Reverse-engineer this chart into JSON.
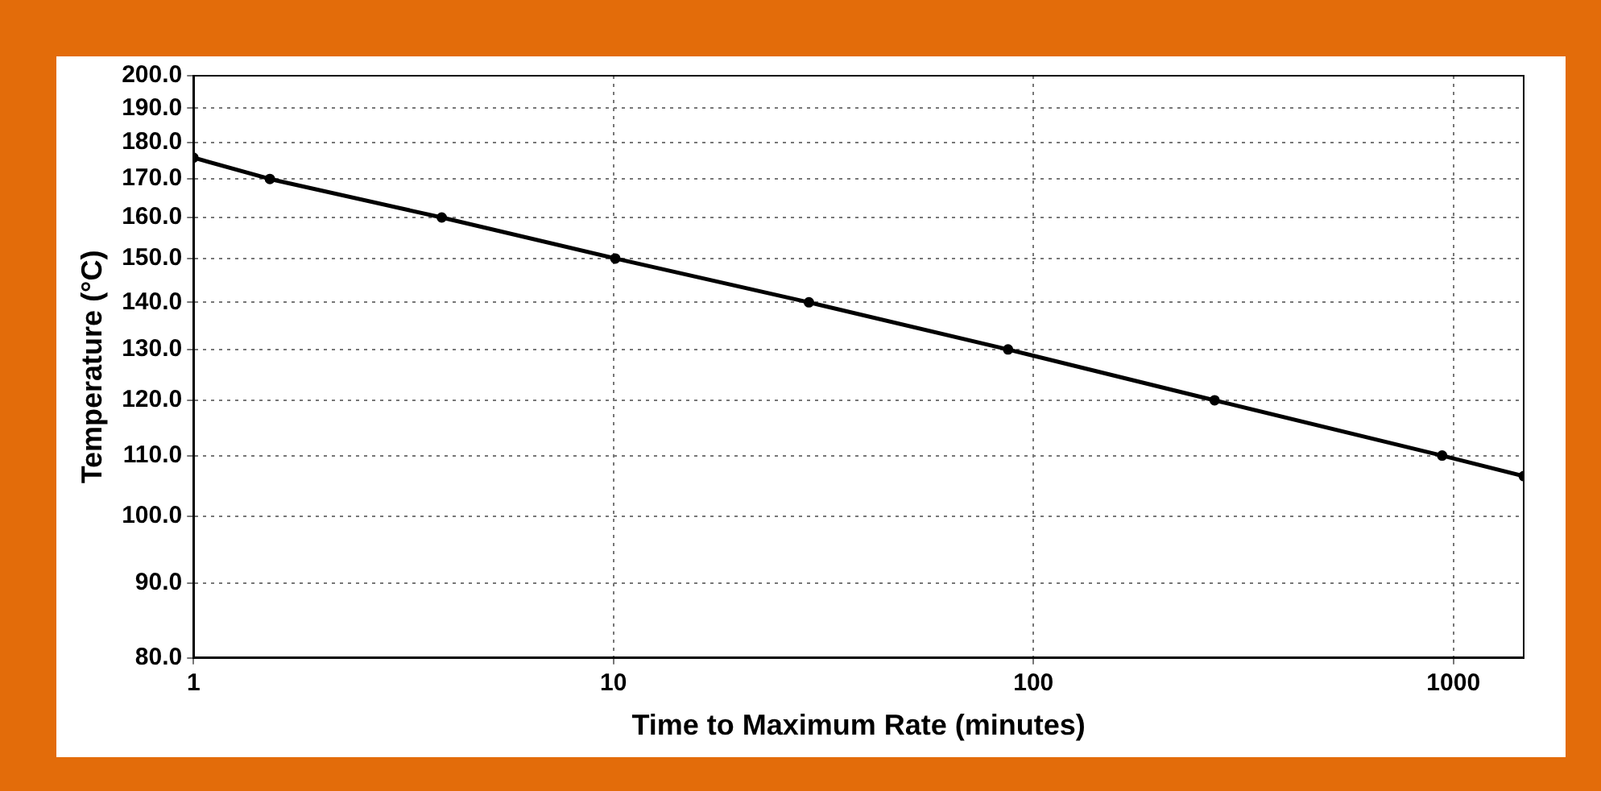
{
  "chart_data": {
    "type": "line",
    "xlabel": "Time to Maximum Rate (minutes)",
    "ylabel": "Temperature (°C)",
    "x": [
      1,
      1.52,
      3.9,
      10.1,
      29.2,
      87,
      270,
      940,
      1470
    ],
    "series": [
      {
        "color": "#000000",
        "values": [
          175.8,
          170,
          160,
          150,
          140,
          130,
          120,
          110,
          106.5
        ]
      }
    ],
    "log": "xy",
    "xlim": [
      1,
      1470
    ],
    "ylim": [
      80,
      200
    ],
    "xticks": [
      1,
      10,
      100,
      1000
    ],
    "yticks": [
      {
        "value": 80,
        "label": "80.0"
      },
      {
        "value": 90,
        "label": "90.0"
      },
      {
        "value": 100,
        "label": "100.0"
      },
      {
        "value": 110,
        "label": "110.0"
      },
      {
        "value": 120,
        "label": "120.0"
      },
      {
        "value": 130,
        "label": "130.0"
      },
      {
        "value": 140,
        "label": "140.0"
      },
      {
        "value": 150,
        "label": "150.0"
      },
      {
        "value": 160,
        "label": "160.0"
      },
      {
        "value": 170,
        "label": "170.0"
      },
      {
        "value": 180,
        "label": "180.0"
      },
      {
        "value": 190,
        "label": "190.0"
      },
      {
        "value": 200,
        "label": "200.0"
      }
    ],
    "grid": true,
    "marker": "circle",
    "line_style": "solid",
    "legend": false
  }
}
